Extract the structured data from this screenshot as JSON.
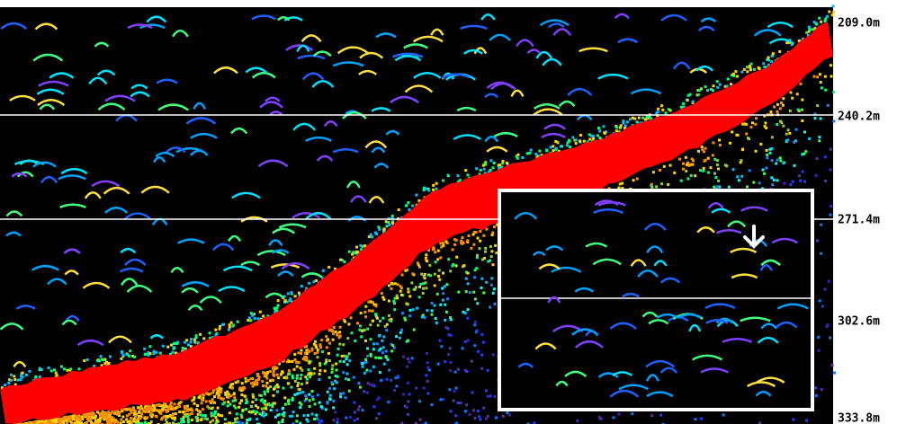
{
  "depth_scale": {
    "labels": [
      "209.0m",
      "240.2m",
      "271.4m",
      "302.6m",
      "333.8m"
    ]
  }
}
